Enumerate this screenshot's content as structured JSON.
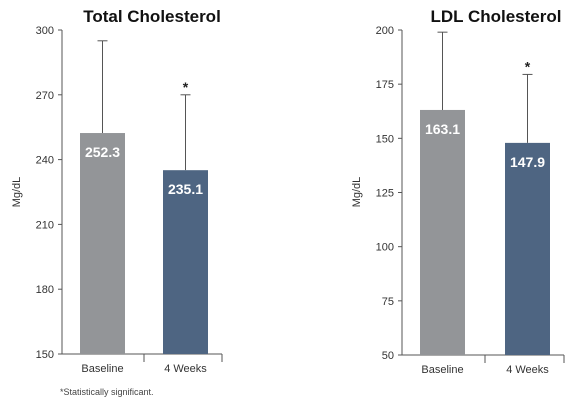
{
  "chart_data": [
    {
      "type": "bar",
      "title": "Total Cholesterol",
      "ylabel": "Mg/dL",
      "categories": [
        "Baseline",
        "4 Weeks"
      ],
      "values": [
        252.3,
        235.1
      ],
      "value_labels": [
        "252.3",
        "235.1"
      ],
      "error_upper": [
        295,
        270
      ],
      "significance": [
        "",
        "*"
      ],
      "bar_colors": [
        "#939598",
        "#4e6582"
      ],
      "ylim": [
        150,
        300
      ],
      "yticks": [
        150,
        180,
        210,
        240,
        270,
        300
      ],
      "grid": false,
      "legend": "none"
    },
    {
      "type": "bar",
      "title": "LDL Cholesterol",
      "ylabel": "Mg/dL",
      "categories": [
        "Baseline",
        "4 Weeks"
      ],
      "values": [
        163.1,
        147.9
      ],
      "value_labels": [
        "163.1",
        "147.9"
      ],
      "error_upper": [
        199,
        179.5
      ],
      "significance": [
        "",
        "*"
      ],
      "bar_colors": [
        "#939598",
        "#4e6582"
      ],
      "ylim": [
        50,
        200
      ],
      "yticks": [
        50,
        75,
        100,
        125,
        150,
        175,
        200
      ],
      "grid": false,
      "legend": "none"
    }
  ],
  "footnote": "*Statistically significant."
}
